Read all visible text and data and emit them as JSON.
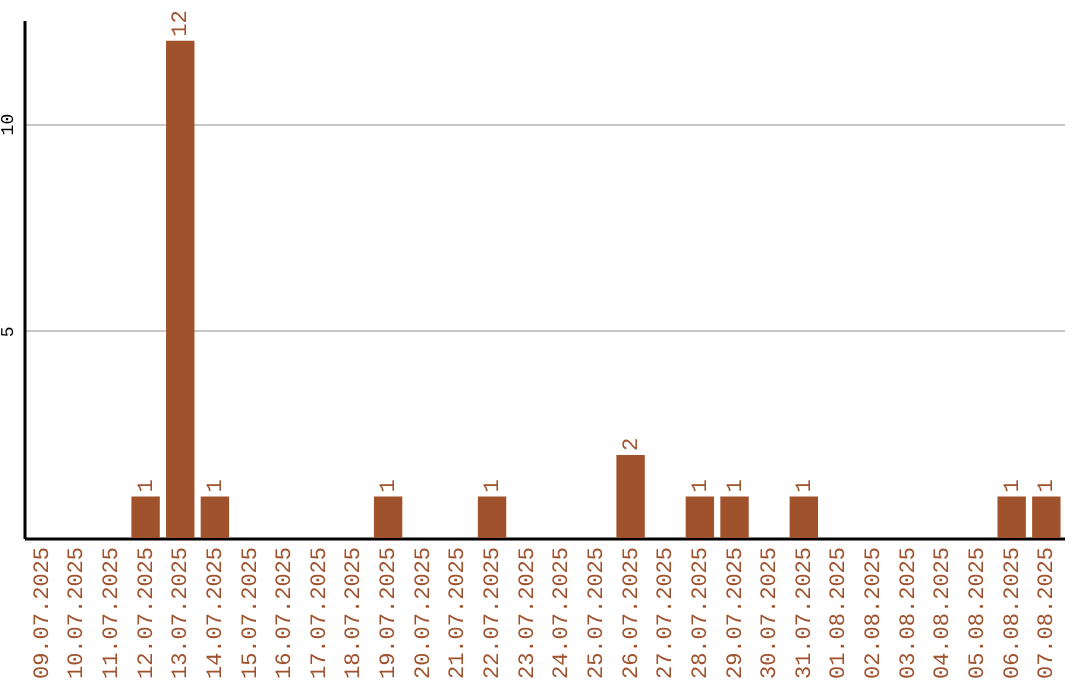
{
  "chart_data": {
    "type": "bar",
    "categories": [
      "09.07.2025",
      "10.07.2025",
      "11.07.2025",
      "12.07.2025",
      "13.07.2025",
      "14.07.2025",
      "15.07.2025",
      "16.07.2025",
      "17.07.2025",
      "18.07.2025",
      "19.07.2025",
      "20.07.2025",
      "21.07.2025",
      "22.07.2025",
      "23.07.2025",
      "24.07.2025",
      "25.07.2025",
      "26.07.2025",
      "27.07.2025",
      "28.07.2025",
      "29.07.2025",
      "30.07.2025",
      "31.07.2025",
      "01.08.2025",
      "02.08.2025",
      "03.08.2025",
      "04.08.2025",
      "05.08.2025",
      "06.08.2025",
      "07.08.2025"
    ],
    "values": [
      0,
      0,
      0,
      1,
      12,
      1,
      0,
      0,
      0,
      0,
      1,
      0,
      0,
      1,
      0,
      0,
      0,
      2,
      0,
      1,
      1,
      0,
      1,
      0,
      0,
      0,
      0,
      0,
      1,
      1
    ],
    "value_labels": [
      null,
      null,
      null,
      "1",
      "12",
      "1",
      null,
      null,
      null,
      null,
      "1",
      null,
      null,
      "1",
      null,
      null,
      null,
      "2",
      null,
      "1",
      "1",
      null,
      "1",
      null,
      null,
      null,
      null,
      null,
      "1",
      "1"
    ],
    "color": "#a0522d",
    "ylim": [
      0,
      12.5
    ],
    "yticks": [
      5,
      10
    ],
    "grid": "y"
  }
}
